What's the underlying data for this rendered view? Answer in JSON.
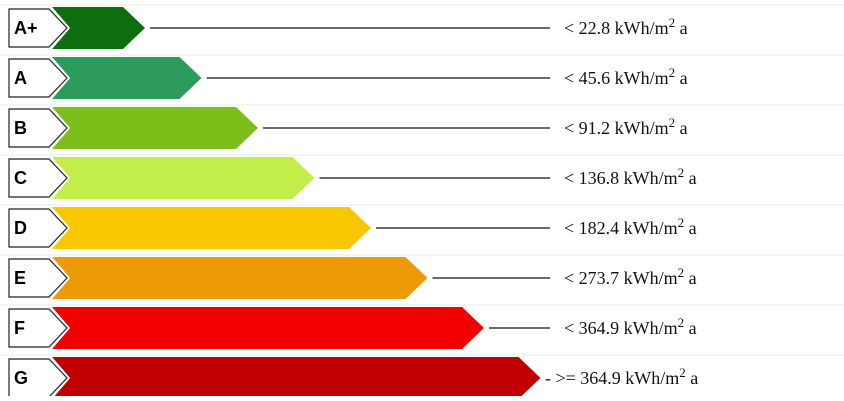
{
  "chart_data": {
    "type": "bar",
    "categories": [
      "A+",
      "A",
      "B",
      "C",
      "D",
      "E",
      "F",
      "G"
    ],
    "values": [
      1,
      2,
      3,
      4,
      5,
      6,
      7,
      8
    ],
    "colors": [
      "#0c6e0c",
      "#2d9b5b",
      "#7dbf1a",
      "#c3ee4a",
      "#f8c700",
      "#ec9a05",
      "#f20000",
      "#c00000"
    ],
    "thresholds": [
      {
        "prefix": "< ",
        "value": "22.8",
        "unit": " kWh/m",
        "sup": "2",
        "suffix": " a"
      },
      {
        "prefix": "< ",
        "value": "45.6",
        "unit": " kWh/m",
        "sup": "2",
        "suffix": " a"
      },
      {
        "prefix": "< ",
        "value": "91.2",
        "unit": " kWh/m",
        "sup": "2",
        "suffix": " a"
      },
      {
        "prefix": "< ",
        "value": "136.8",
        "unit": " kWh/m",
        "sup": "2",
        "suffix": " a"
      },
      {
        "prefix": "< ",
        "value": "182.4",
        "unit": " kWh/m",
        "sup": "2",
        "suffix": " a"
      },
      {
        "prefix": "< ",
        "value": "273.7",
        "unit": " kWh/m",
        "sup": "2",
        "suffix": " a"
      },
      {
        "prefix": "< ",
        "value": "364.9",
        "unit": " kWh/m",
        "sup": "2",
        "suffix": " a"
      },
      {
        "prefix": "- >= ",
        "value": "364.9",
        "unit": " kWh/m",
        "sup": "2",
        "suffix": " a"
      }
    ]
  }
}
